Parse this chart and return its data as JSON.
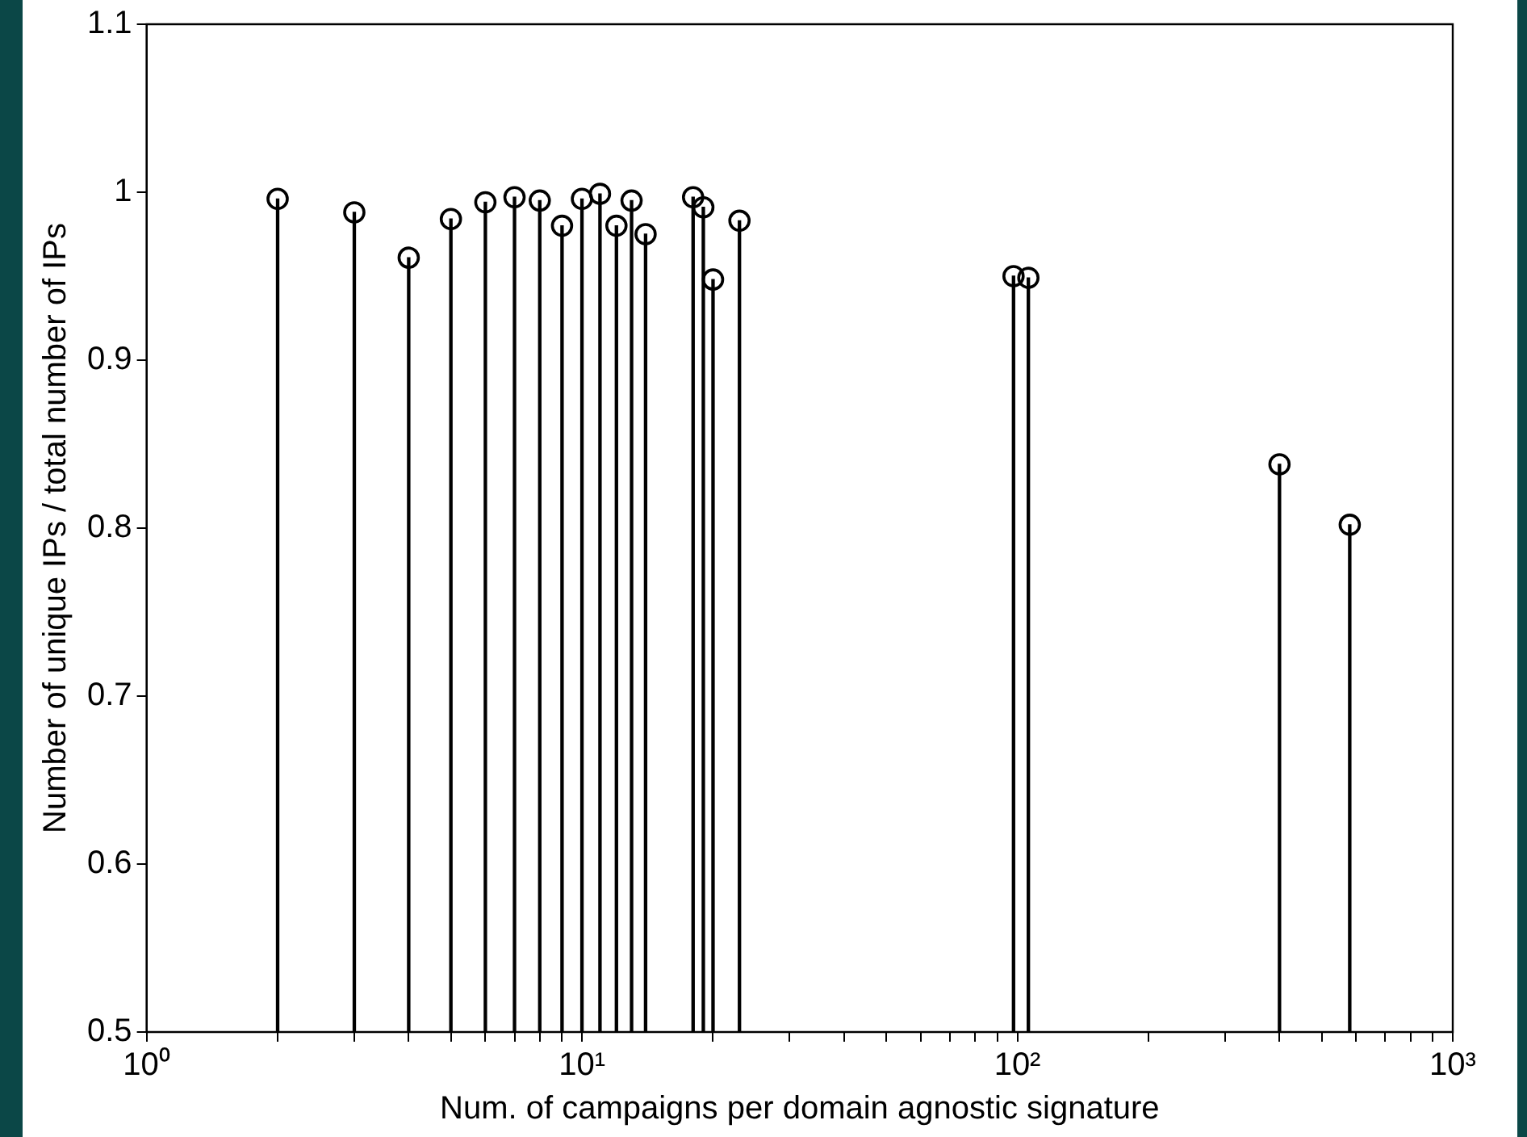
{
  "chart_data": {
    "type": "lollipop",
    "xlabel": "Num. of campaigns per domain agnostic signature",
    "ylabel": "Number of unique IPs / total number of IPs",
    "x": [
      2,
      3,
      4,
      5,
      6,
      7,
      8,
      9,
      10,
      11,
      12,
      13,
      14,
      18,
      19,
      20,
      23,
      98,
      106,
      400,
      580
    ],
    "values": [
      0.996,
      0.988,
      0.961,
      0.984,
      0.994,
      0.997,
      0.995,
      0.98,
      0.996,
      0.999,
      0.98,
      0.995,
      0.975,
      0.997,
      0.991,
      0.948,
      0.983,
      0.95,
      0.949,
      0.838,
      0.802
    ],
    "color": "#000000",
    "marker": "circle",
    "log": "x",
    "grid": false,
    "xlim": [
      1,
      1000
    ],
    "xticks": [
      {
        "value": 1,
        "label": "10⁰"
      },
      {
        "value": 2,
        "label": null
      },
      {
        "value": 3,
        "label": null
      },
      {
        "value": 4,
        "label": null
      },
      {
        "value": 5,
        "label": null
      },
      {
        "value": 6,
        "label": null
      },
      {
        "value": 7,
        "label": null
      },
      {
        "value": 8,
        "label": null
      },
      {
        "value": 9,
        "label": null
      },
      {
        "value": 10,
        "label": "10¹"
      },
      {
        "value": 20,
        "label": null
      },
      {
        "value": 30,
        "label": null
      },
      {
        "value": 40,
        "label": null
      },
      {
        "value": 50,
        "label": null
      },
      {
        "value": 60,
        "label": null
      },
      {
        "value": 70,
        "label": null
      },
      {
        "value": 80,
        "label": null
      },
      {
        "value": 90,
        "label": null
      },
      {
        "value": 100,
        "label": "10²"
      },
      {
        "value": 200,
        "label": null
      },
      {
        "value": 300,
        "label": null
      },
      {
        "value": 400,
        "label": null
      },
      {
        "value": 500,
        "label": null
      },
      {
        "value": 600,
        "label": null
      },
      {
        "value": 700,
        "label": null
      },
      {
        "value": 800,
        "label": null
      },
      {
        "value": 900,
        "label": null
      },
      {
        "value": 1000,
        "label": "10³"
      }
    ],
    "ylim": [
      0.5,
      1.1
    ],
    "yticks": [
      0.5,
      0.6,
      0.7,
      0.8,
      0.9,
      1,
      1.1
    ]
  }
}
